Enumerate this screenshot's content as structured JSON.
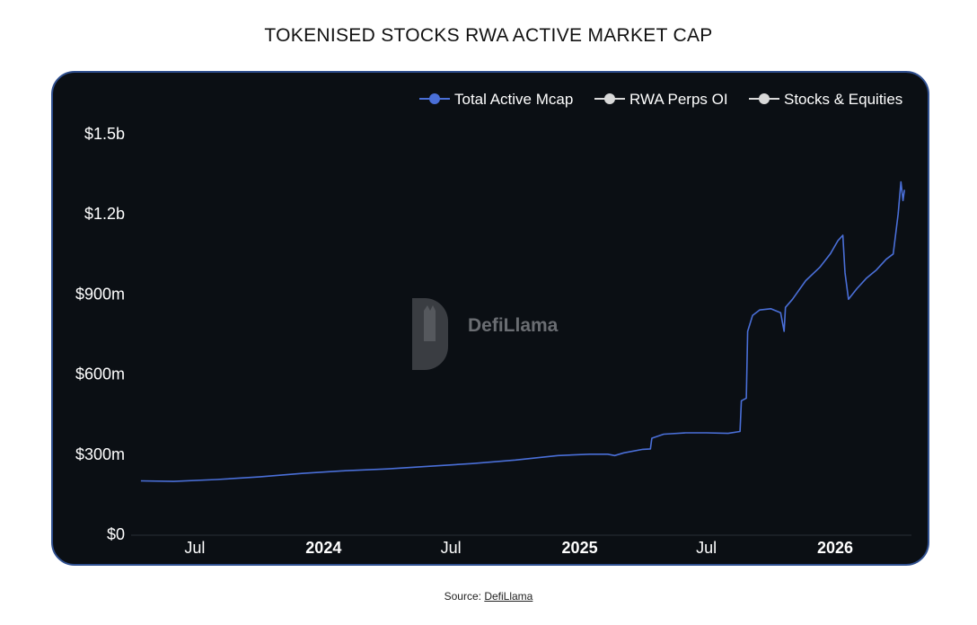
{
  "page": {
    "title": "TOKENISED STOCKS RWA ACTIVE MARKET CAP",
    "source_prefix": "Source:",
    "source_link": "DefiLlama"
  },
  "watermark": {
    "text": "DefiLlama",
    "icon": "llama-logo-icon"
  },
  "colors": {
    "background": "#0b0f14",
    "border": "#2f4f8f",
    "total_line": "#4a6fd8",
    "legend_marker_gray": "#d9d9d9",
    "axis_text": "#ffffff"
  },
  "chart_data": {
    "type": "line",
    "title": "",
    "xlabel": "",
    "ylabel": "",
    "ylim": [
      0,
      1500000000
    ],
    "grid": false,
    "legend_position": "top-right",
    "y_ticks": [
      {
        "value": 0,
        "label": "$0"
      },
      {
        "value": 300000000,
        "label": "$300m"
      },
      {
        "value": 600000000,
        "label": "$600m"
      },
      {
        "value": 900000000,
        "label": "$900m"
      },
      {
        "value": 1200000000,
        "label": "$1.2b"
      },
      {
        "value": 1500000000,
        "label": "$1.5b"
      }
    ],
    "x_ticks": [
      {
        "date": "2023-07-01",
        "label": "Jul",
        "bold": false
      },
      {
        "date": "2024-01-01",
        "label": "2024",
        "bold": true
      },
      {
        "date": "2024-07-01",
        "label": "Jul",
        "bold": false
      },
      {
        "date": "2025-01-01",
        "label": "2025",
        "bold": true
      },
      {
        "date": "2025-07-01",
        "label": "Jul",
        "bold": false
      },
      {
        "date": "2026-01-01",
        "label": "2026",
        "bold": true
      }
    ],
    "xlim": [
      "2023-04-01",
      "2026-04-20"
    ],
    "series": [
      {
        "name": "Total Active Mcap",
        "color": "#4a6fd8",
        "points": [
          [
            "2023-04-15",
            200000000
          ],
          [
            "2023-06-01",
            198000000
          ],
          [
            "2023-08-01",
            205000000
          ],
          [
            "2023-10-01",
            215000000
          ],
          [
            "2023-12-01",
            228000000
          ],
          [
            "2024-02-01",
            238000000
          ],
          [
            "2024-04-01",
            245000000
          ],
          [
            "2024-06-01",
            255000000
          ],
          [
            "2024-08-01",
            265000000
          ],
          [
            "2024-10-01",
            278000000
          ],
          [
            "2024-12-01",
            295000000
          ],
          [
            "2025-01-15",
            300000000
          ],
          [
            "2025-02-10",
            300000000
          ],
          [
            "2025-02-20",
            295000000
          ],
          [
            "2025-03-05",
            305000000
          ],
          [
            "2025-04-01",
            318000000
          ],
          [
            "2025-04-12",
            320000000
          ],
          [
            "2025-04-14",
            360000000
          ],
          [
            "2025-05-01",
            375000000
          ],
          [
            "2025-06-01",
            380000000
          ],
          [
            "2025-07-01",
            380000000
          ],
          [
            "2025-08-01",
            378000000
          ],
          [
            "2025-08-18",
            385000000
          ],
          [
            "2025-08-20",
            500000000
          ],
          [
            "2025-08-27",
            510000000
          ],
          [
            "2025-08-29",
            760000000
          ],
          [
            "2025-09-05",
            820000000
          ],
          [
            "2025-09-15",
            840000000
          ],
          [
            "2025-10-01",
            845000000
          ],
          [
            "2025-10-15",
            830000000
          ],
          [
            "2025-10-20",
            760000000
          ],
          [
            "2025-10-22",
            850000000
          ],
          [
            "2025-11-01",
            880000000
          ],
          [
            "2025-11-20",
            950000000
          ],
          [
            "2025-12-10",
            1000000000
          ],
          [
            "2025-12-25",
            1050000000
          ],
          [
            "2026-01-05",
            1100000000
          ],
          [
            "2026-01-12",
            1120000000
          ],
          [
            "2026-01-15",
            980000000
          ],
          [
            "2026-01-20",
            880000000
          ],
          [
            "2026-02-01",
            920000000
          ],
          [
            "2026-02-15",
            960000000
          ],
          [
            "2026-03-01",
            990000000
          ],
          [
            "2026-03-15",
            1030000000
          ],
          [
            "2026-03-25",
            1050000000
          ],
          [
            "2026-04-01",
            1200000000
          ],
          [
            "2026-04-05",
            1320000000
          ],
          [
            "2026-04-08",
            1250000000
          ],
          [
            "2026-04-10",
            1290000000
          ]
        ]
      },
      {
        "name": "RWA Perps OI",
        "color": "#d9d9d9",
        "points": []
      },
      {
        "name": "Stocks & Equities",
        "color": "#d9d9d9",
        "points": []
      }
    ]
  }
}
